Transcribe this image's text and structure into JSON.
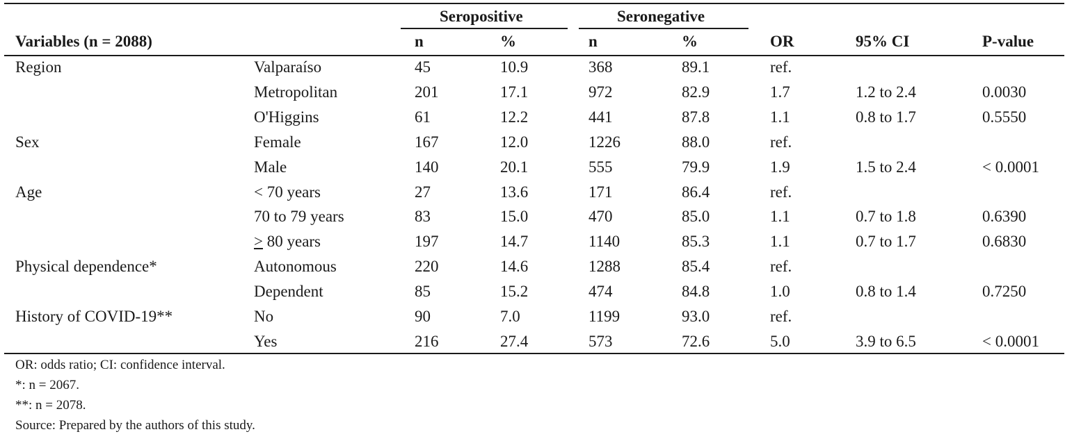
{
  "table": {
    "group_headers": {
      "seropositive": "Seropositive",
      "seronegative": "Seronegative"
    },
    "columns": {
      "variables": "Variables (n = 2088)",
      "pos_n": "n",
      "pos_pct": "%",
      "neg_n": "n",
      "neg_pct": "%",
      "or": "OR",
      "ci": "95% CI",
      "p": "P-value"
    },
    "rows": [
      {
        "variable": "Region",
        "category": "Valparaíso",
        "pos_n": "45",
        "pos_pct": "10.9",
        "neg_n": "368",
        "neg_pct": "89.1",
        "or": "ref.",
        "ci": "",
        "p": ""
      },
      {
        "variable": "",
        "category": "Metropolitan",
        "pos_n": "201",
        "pos_pct": "17.1",
        "neg_n": "972",
        "neg_pct": "82.9",
        "or": "1.7",
        "ci": "1.2 to 2.4",
        "p": "0.0030"
      },
      {
        "variable": "",
        "category": "O'Higgins",
        "pos_n": "61",
        "pos_pct": "12.2",
        "neg_n": "441",
        "neg_pct": "87.8",
        "or": "1.1",
        "ci": "0.8 to 1.7",
        "p": "0.5550"
      },
      {
        "variable": "Sex",
        "category": "Female",
        "pos_n": "167",
        "pos_pct": "12.0",
        "neg_n": "1226",
        "neg_pct": "88.0",
        "or": "ref.",
        "ci": "",
        "p": ""
      },
      {
        "variable": "",
        "category": "Male",
        "pos_n": "140",
        "pos_pct": "20.1",
        "neg_n": "555",
        "neg_pct": "79.9",
        "or": "1.9",
        "ci": "1.5 to 2.4",
        "p": "< 0.0001"
      },
      {
        "variable": "Age",
        "category": "< 70 years",
        "pos_n": "27",
        "pos_pct": "13.6",
        "neg_n": "171",
        "neg_pct": "86.4",
        "or": "ref.",
        "ci": "",
        "p": ""
      },
      {
        "variable": "",
        "category": "70 to 79 years",
        "pos_n": "83",
        "pos_pct": "15.0",
        "neg_n": "470",
        "neg_pct": "85.0",
        "or": "1.1",
        "ci": "0.7 to 1.8",
        "p": "0.6390"
      },
      {
        "variable": "",
        "category": "> 80 years",
        "pos_n": "197",
        "pos_pct": "14.7",
        "neg_n": "1140",
        "neg_pct": "85.3",
        "or": "1.1",
        "ci": "0.7 to 1.7",
        "p": "0.6830"
      },
      {
        "variable": "Physical dependence*",
        "category": "Autonomous",
        "pos_n": "220",
        "pos_pct": "14.6",
        "neg_n": "1288",
        "neg_pct": "85.4",
        "or": "ref.",
        "ci": "",
        "p": ""
      },
      {
        "variable": "",
        "category": "Dependent",
        "pos_n": "85",
        "pos_pct": "15.2",
        "neg_n": "474",
        "neg_pct": "84.8",
        "or": "1.0",
        "ci": "0.8 to 1.4",
        "p": "0.7250"
      },
      {
        "variable": "History of COVID-19**",
        "category": "No",
        "pos_n": "90",
        "pos_pct": "7.0",
        "neg_n": "1199",
        "neg_pct": "93.0",
        "or": "ref.",
        "ci": "",
        "p": ""
      },
      {
        "variable": "",
        "category": "Yes",
        "pos_n": "216",
        "pos_pct": "27.4",
        "neg_n": "573",
        "neg_pct": "72.6",
        "or": "5.0",
        "ci": "3.9 to 6.5",
        "p": "< 0.0001"
      }
    ]
  },
  "footnotes": [
    "OR: odds ratio; CI: confidence interval.",
    "*: n = 2067.",
    "**: n = 2078.",
    "Source: Prepared by the authors of this study."
  ]
}
